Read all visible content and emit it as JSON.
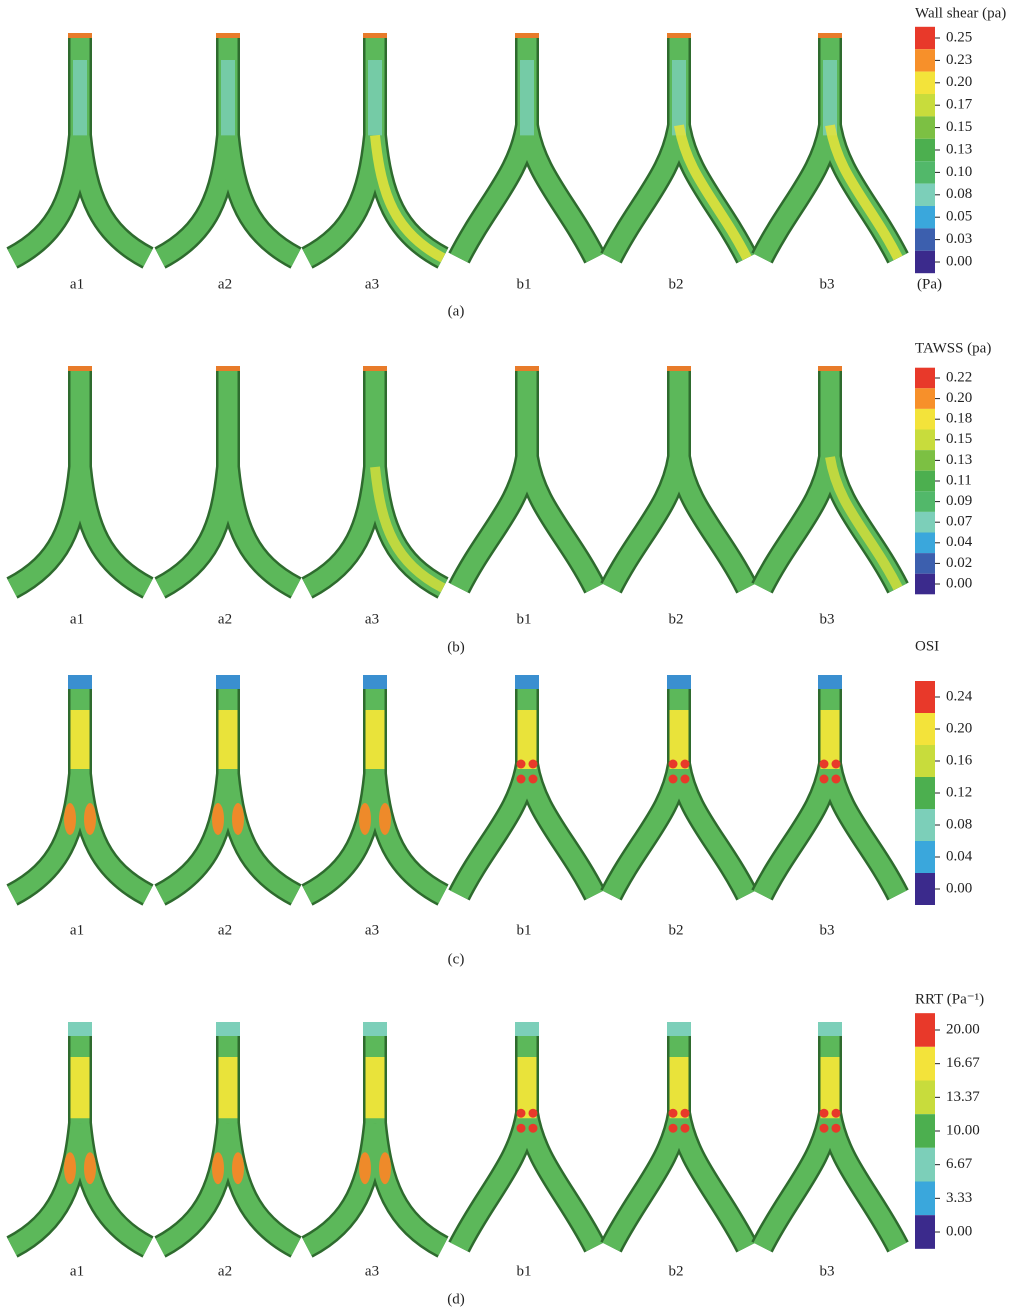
{
  "panels": [
    {
      "legend_title": "Wall shear (pa)",
      "legend_ticks": [
        "0.25",
        "0.23",
        "0.20",
        "0.17",
        "0.15",
        "0.13",
        "0.10",
        "0.08",
        "0.05",
        "0.03",
        "0.00"
      ],
      "unit": "(Pa)",
      "model_labels": [
        "a1",
        "a2",
        "a3",
        "b1",
        "b2",
        "b3"
      ],
      "caption": "(a)"
    },
    {
      "legend_title": "TAWSS (pa)",
      "legend_ticks": [
        "0.22",
        "0.20",
        "0.18",
        "0.15",
        "0.13",
        "0.11",
        "0.09",
        "0.07",
        "0.04",
        "0.02",
        "0.00"
      ],
      "model_labels": [
        "a1",
        "a2",
        "a3",
        "b1",
        "b2",
        "b3"
      ],
      "caption": "(b)"
    },
    {
      "legend_title": "OSI",
      "legend_ticks": [
        "0.24",
        "0.20",
        "0.16",
        "0.12",
        "0.08",
        "0.04",
        "0.00"
      ],
      "model_labels": [
        "a1",
        "a2",
        "a3",
        "b1",
        "b2",
        "b3"
      ],
      "caption": "(c)"
    },
    {
      "legend_title": "RRT (Pa⁻¹)",
      "legend_ticks": [
        "20.00",
        "16.67",
        "13.37",
        "10.00",
        "6.67",
        "3.33",
        "0.00"
      ],
      "model_labels": [
        "a1",
        "a2",
        "a3",
        "b1",
        "b2",
        "b3"
      ],
      "caption": "(d)"
    }
  ]
}
